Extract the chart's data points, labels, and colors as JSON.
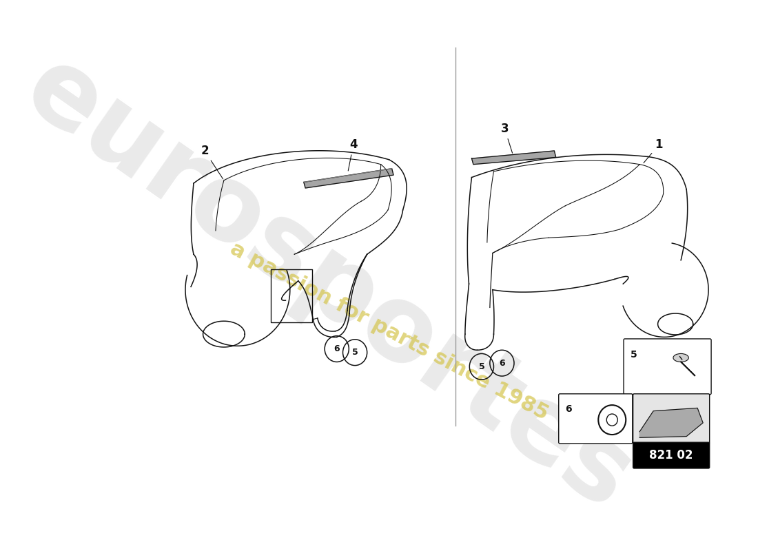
{
  "bg_color": "#ffffff",
  "watermark_text1": "eurosportes",
  "watermark_text2": "a passion for parts since 1985",
  "part_number": "821 02"
}
